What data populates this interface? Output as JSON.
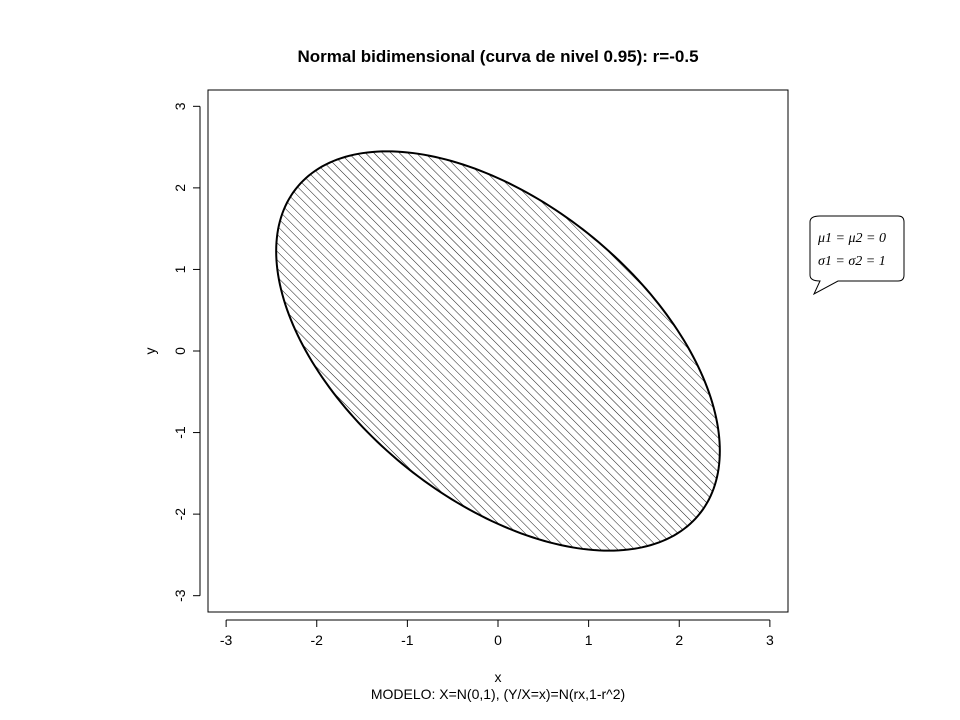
{
  "chart_data": {
    "type": "ellipse-contour",
    "title": "Normal bidimensional (curva de nivel 0.95): r=-0.5",
    "xlabel": "x",
    "ylabel": "y",
    "caption": "MODELO: X=N(0,1), (Y/X=x)=N(rx,1-r^2)",
    "xlim": [
      -3.2,
      3.2
    ],
    "ylim": [
      -3.2,
      3.2
    ],
    "x_ticks": [
      -3,
      -2,
      -1,
      0,
      1,
      2,
      3
    ],
    "y_ticks": [
      -3,
      -2,
      -1,
      0,
      1,
      2,
      3
    ],
    "x_tick_labels": [
      "-3",
      "-2",
      "-1",
      "0",
      "1",
      "2",
      "3"
    ],
    "y_tick_labels": [
      "-3",
      "-2",
      "-1",
      "0",
      "1",
      "2",
      "3"
    ],
    "contour_level": 0.95,
    "r": -0.5,
    "mu": [
      0,
      0
    ],
    "sigma": [
      1,
      1
    ],
    "fill": "hatched",
    "legend": {
      "line1": "μ1 = μ2 = 0",
      "line2": "σ1 = σ2 = 1"
    },
    "colors": {
      "stroke": "#000000",
      "background": "#ffffff"
    }
  }
}
